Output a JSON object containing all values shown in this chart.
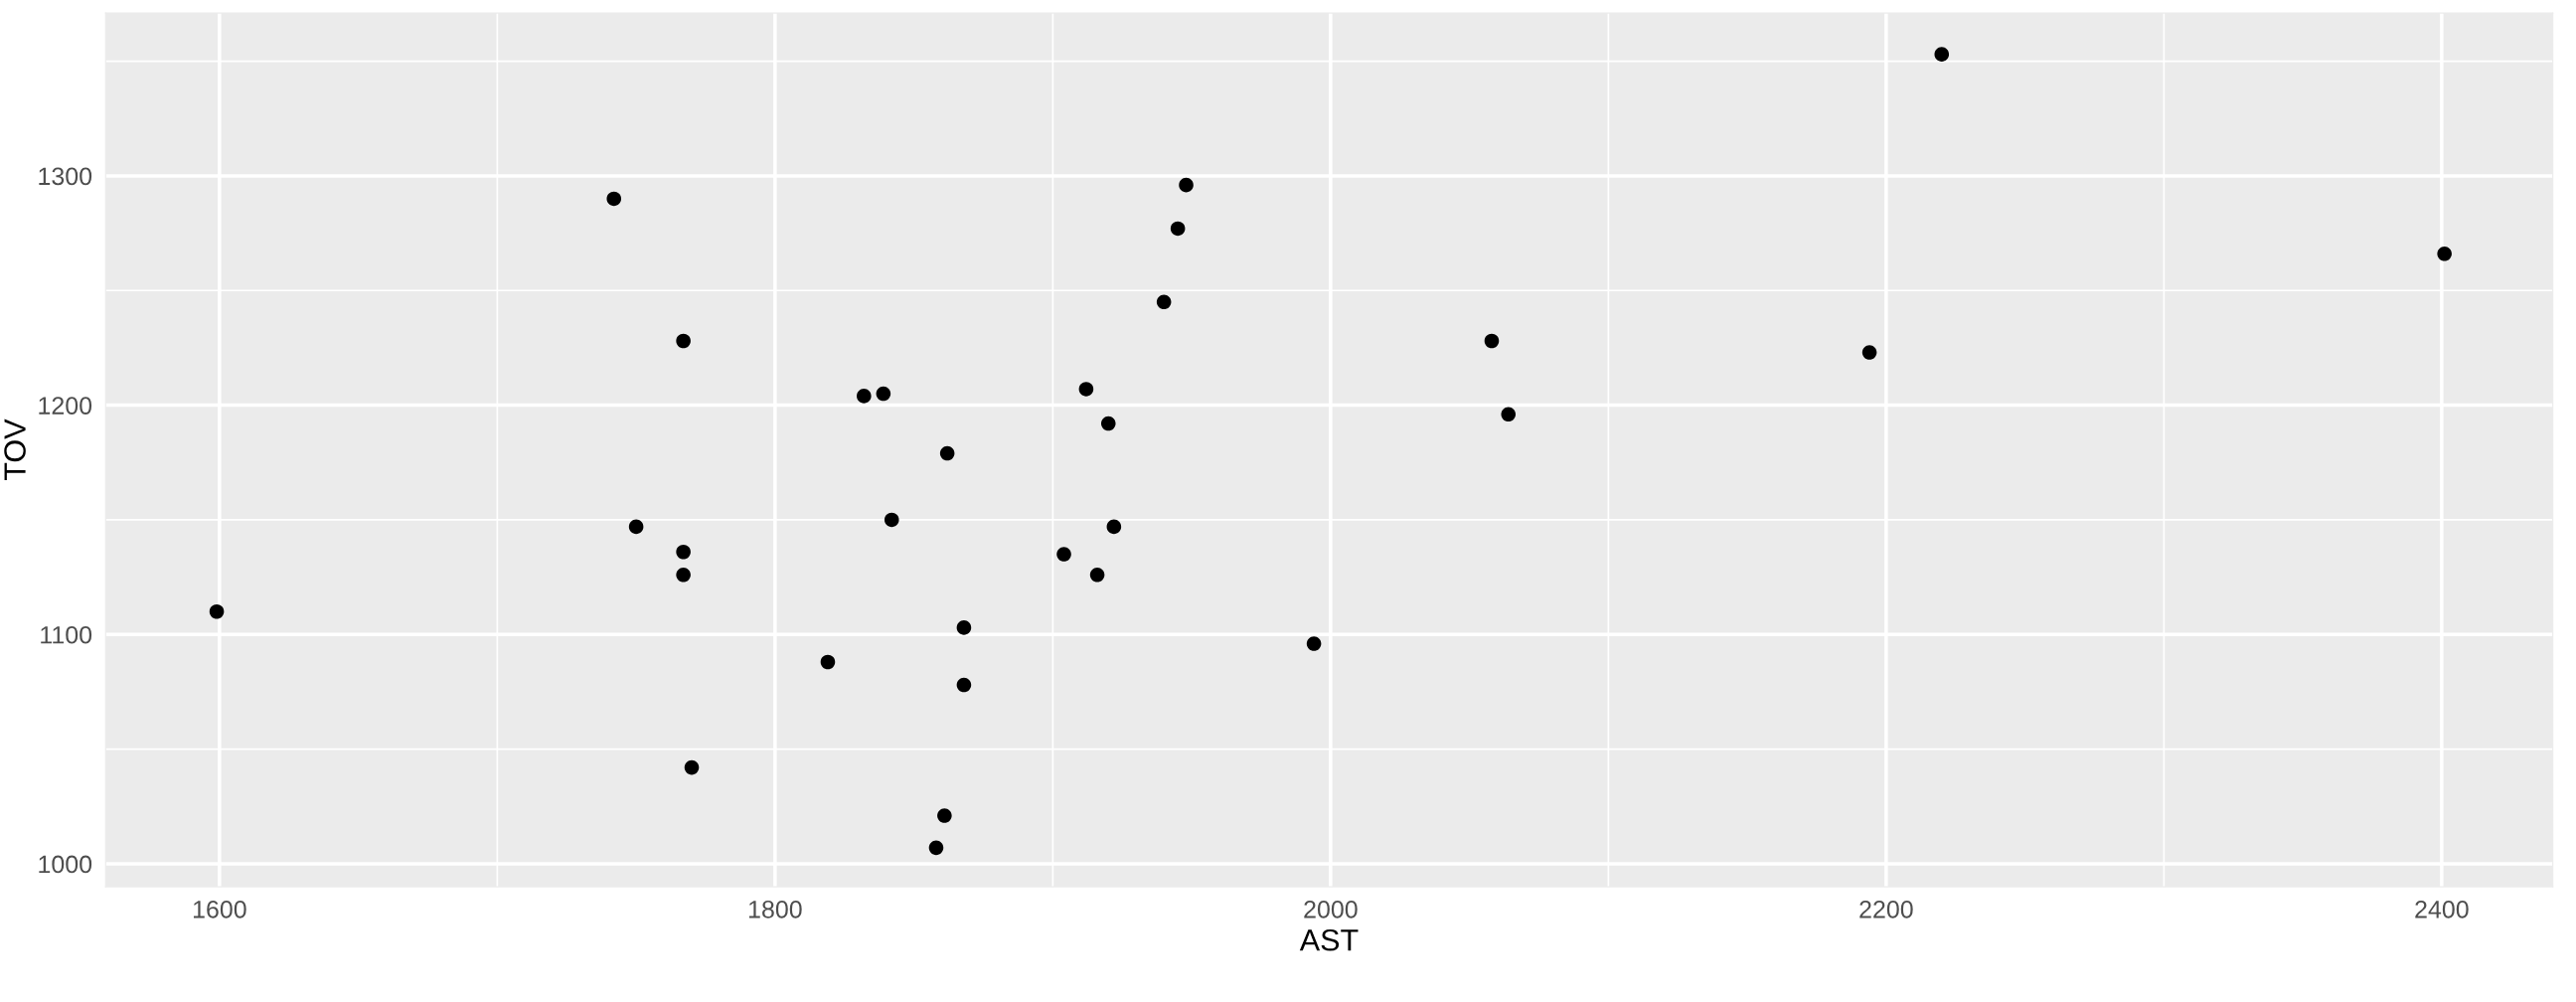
{
  "chart_data": {
    "type": "scatter",
    "xlabel": "AST",
    "ylabel": "TOV",
    "x": [
      1599,
      1742,
      1767,
      1750,
      1767,
      1767,
      1770,
      1819,
      1832,
      1839,
      1842,
      1862,
      1861,
      1858,
      1868,
      1868,
      1904,
      1912,
      1916,
      1920,
      1922,
      1940,
      1945,
      1948,
      1994,
      2058,
      2064,
      2194,
      2220,
      2401
    ],
    "values": [
      1110,
      1290,
      1228,
      1147,
      1136,
      1126,
      1042,
      1088,
      1204,
      1205,
      1150,
      1179,
      1021,
      1007,
      1103,
      1078,
      1135,
      1207,
      1126,
      1192,
      1147,
      1245,
      1277,
      1296,
      1096,
      1228,
      1196,
      1223,
      1353,
      1266
    ],
    "color": "#000000",
    "marker": "circle",
    "xlim": [
      1559,
      2440
    ],
    "ylim": [
      990,
      1371
    ],
    "xticks": [
      1600,
      1800,
      2000,
      2200,
      2400
    ],
    "yticks": [
      1000,
      1100,
      1200,
      1300
    ],
    "grid": true
  }
}
